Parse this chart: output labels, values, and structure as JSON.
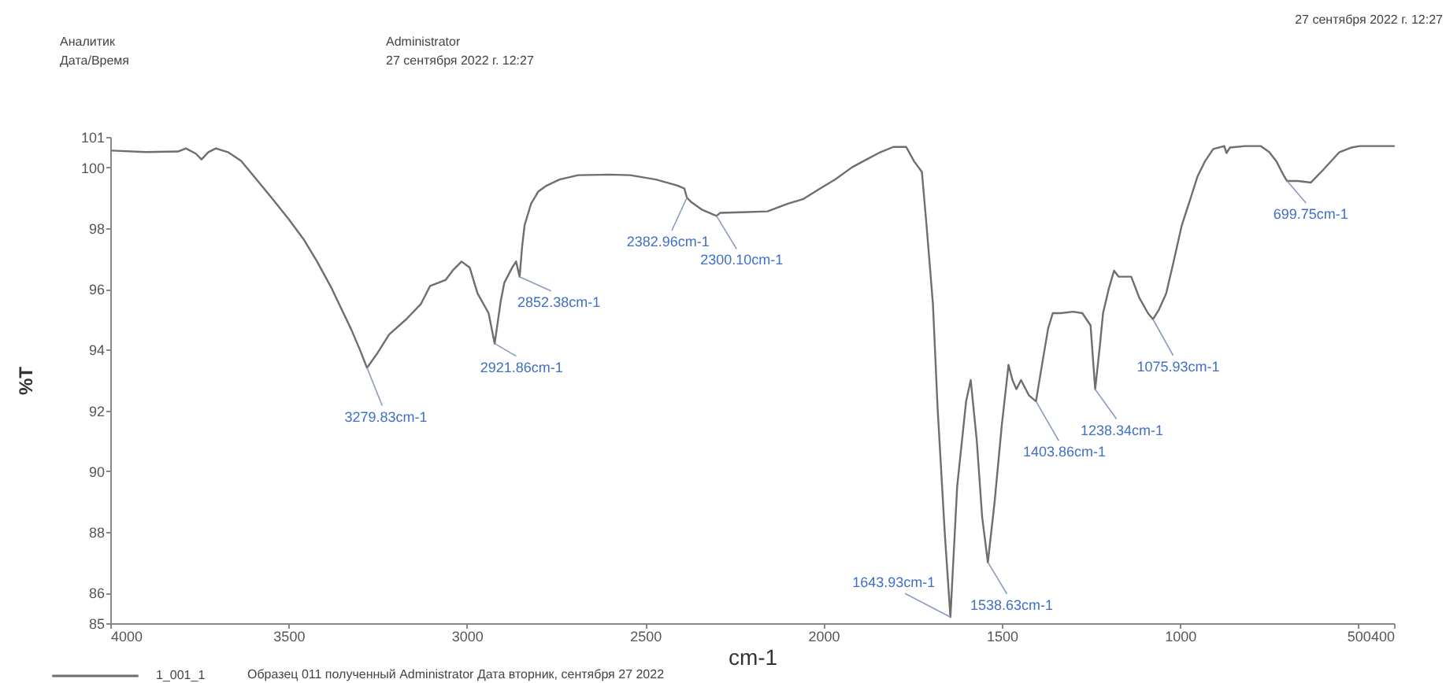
{
  "chart_data": {
    "type": "line",
    "xlabel": "cm-1",
    "ylabel": "%T",
    "xlim": [
      4000,
      400
    ],
    "xticks": [
      4000,
      3500,
      3000,
      2500,
      2000,
      1500,
      1000,
      500,
      400
    ],
    "ylim": [
      85,
      101
    ],
    "yticks": [
      85,
      86,
      88,
      90,
      92,
      94,
      96,
      98,
      100,
      101
    ],
    "legend": "bottom left",
    "x": [
      3995,
      3900,
      3810,
      3788,
      3760,
      3744,
      3725,
      3704,
      3670,
      3633,
      3590,
      3545,
      3500,
      3456,
      3420,
      3381,
      3350,
      3324,
      3300,
      3280,
      3250,
      3218,
      3170,
      3129,
      3103,
      3080,
      3059,
      3040,
      3015,
      2992,
      2970,
      2939,
      2922,
      2905,
      2895,
      2873,
      2862,
      2852,
      2845,
      2838,
      2820,
      2800,
      2776,
      2740,
      2688,
      2600,
      2542,
      2470,
      2409,
      2390,
      2383,
      2370,
      2340,
      2300,
      2290,
      2230,
      2157,
      2100,
      2056,
      2010,
      1967,
      1920,
      1879,
      1840,
      1804,
      1768,
      1746,
      1724,
      1711,
      1693,
      1680,
      1660,
      1644,
      1625,
      1600,
      1587,
      1570,
      1555,
      1539,
      1520,
      1500,
      1481,
      1470,
      1459,
      1446,
      1424,
      1404,
      1390,
      1370,
      1357,
      1335,
      1300,
      1274,
      1251,
      1238,
      1226,
      1216,
      1200,
      1185,
      1172,
      1137,
      1114,
      1090,
      1076,
      1060,
      1039,
      1020,
      995,
      970,
      951,
      930,
      907,
      876,
      870,
      860,
      818,
      774,
      750,
      730,
      708,
      700,
      670,
      633,
      600,
      553,
      520,
      496,
      400
    ],
    "series": [
      {
        "name": "1_001_1",
        "color": "#6e6e6e",
        "values": [
          100.55,
          100.5,
          100.52,
          100.62,
          100.45,
          100.26,
          100.5,
          100.62,
          100.5,
          100.21,
          99.6,
          98.96,
          98.3,
          97.6,
          96.9,
          96.06,
          95.3,
          94.66,
          94.0,
          93.4,
          93.9,
          94.5,
          95.0,
          95.5,
          96.1,
          96.2,
          96.3,
          96.6,
          96.9,
          96.7,
          95.85,
          95.2,
          94.2,
          95.6,
          96.2,
          96.7,
          96.9,
          96.4,
          97.4,
          98.1,
          98.8,
          99.2,
          99.4,
          99.6,
          99.74,
          99.76,
          99.74,
          99.6,
          99.4,
          99.3,
          99.0,
          98.85,
          98.6,
          98.4,
          98.5,
          98.52,
          98.55,
          98.8,
          98.96,
          99.3,
          99.6,
          100.0,
          100.26,
          100.5,
          100.67,
          100.67,
          100.2,
          99.85,
          98.1,
          95.5,
          92.1,
          88.0,
          85.2,
          89.5,
          92.3,
          93.0,
          91.0,
          88.5,
          87.0,
          89.0,
          91.5,
          93.5,
          93.0,
          92.7,
          93.0,
          92.5,
          92.3,
          93.3,
          94.7,
          95.2,
          95.2,
          95.25,
          95.2,
          94.8,
          92.7,
          94.0,
          95.2,
          96.0,
          96.6,
          96.4,
          96.4,
          95.7,
          95.2,
          95.0,
          95.3,
          95.85,
          96.8,
          98.1,
          99.0,
          99.7,
          100.2,
          100.6,
          100.7,
          100.47,
          100.65,
          100.7,
          100.7,
          100.5,
          100.2,
          99.7,
          99.55,
          99.55,
          99.5,
          99.9,
          100.5,
          100.65,
          100.7,
          100.7
        ]
      }
    ],
    "annotations": [
      "Аналитик",
      "Дата/Время",
      "Administrator",
      "27 сентября 2022 г. 12:27",
      "27 сентября 2022 г. 12:27",
      "Образец 011 полученный Administrator Дата вторник, сентября 27 2022",
      {
        "text": "3279.83cm-1",
        "x": 3279.83,
        "y": 93.4
      },
      {
        "text": "2921.86cm-1",
        "x": 2921.86,
        "y": 94.2
      },
      {
        "text": "2852.38cm-1",
        "x": 2852.38,
        "y": 96.4
      },
      {
        "text": "2382.96cm-1",
        "x": 2382.96,
        "y": 99.0
      },
      {
        "text": "2300.10cm-1",
        "x": 2300.1,
        "y": 98.4
      },
      {
        "text": "1643.93cm-1",
        "x": 1643.93,
        "y": 85.2
      },
      {
        "text": "1538.63cm-1",
        "x": 1538.63,
        "y": 87.0
      },
      {
        "text": "1403.86cm-1",
        "x": 1403.86,
        "y": 92.3
      },
      {
        "text": "1238.34cm-1",
        "x": 1238.34,
        "y": 92.7
      },
      {
        "text": "1075.93cm-1",
        "x": 1075.93,
        "y": 95.0
      },
      {
        "text": "699.75cm-1",
        "x": 699.75,
        "y": 99.55
      }
    ]
  }
}
